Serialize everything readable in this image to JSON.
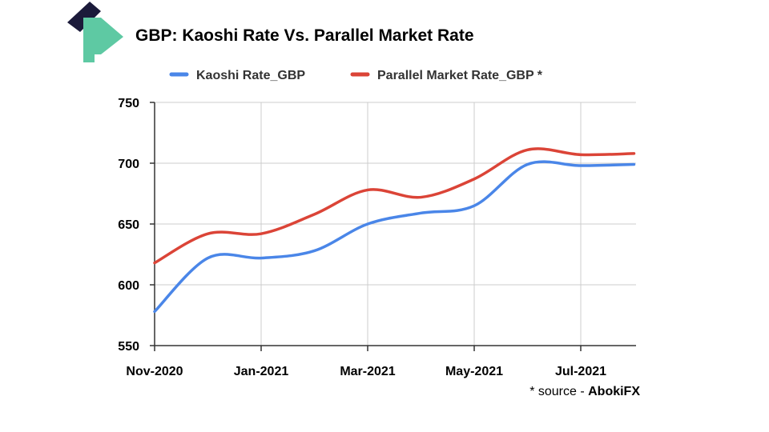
{
  "title": "GBP: Kaoshi Rate Vs. Parallel Market Rate",
  "source": {
    "prefix": "* source - ",
    "name": "AbokiFX"
  },
  "logo": {
    "icon": "kaoshi-logo-icon",
    "colors": {
      "dark": "#1b1a3a",
      "green": "#5ec9a3"
    }
  },
  "chart_data": {
    "type": "line",
    "title": "GBP: Kaoshi Rate Vs. Parallel Market Rate",
    "xlabel": "",
    "ylabel": "",
    "x_tick_labels": [
      "Nov-2020",
      "Jan-2021",
      "Mar-2021",
      "May-2021",
      "Jul-2021"
    ],
    "x_months": [
      "Nov-2020",
      "Dec-2020",
      "Jan-2021",
      "Feb-2021",
      "Mar-2021",
      "Apr-2021",
      "May-2021",
      "Jun-2021",
      "Jul-2021",
      "Aug-2021"
    ],
    "xlim": [
      "Nov-2020",
      "Aug-2021"
    ],
    "ylim": [
      550,
      750
    ],
    "y_ticks": [
      550,
      600,
      650,
      700,
      750
    ],
    "grid": true,
    "legend_position": "top",
    "series": [
      {
        "name": "Kaoshi Rate_GBP",
        "color": "#4a86e8",
        "points": [
          {
            "x": "2020-11-01",
            "y": 578
          },
          {
            "x": "2020-12-01",
            "y": 622
          },
          {
            "x": "2021-01-01",
            "y": 622
          },
          {
            "x": "2021-02-01",
            "y": 628
          },
          {
            "x": "2021-03-01",
            "y": 650
          },
          {
            "x": "2021-04-01",
            "y": 659
          },
          {
            "x": "2021-05-01",
            "y": 665
          },
          {
            "x": "2021-06-01",
            "y": 699
          },
          {
            "x": "2021-07-01",
            "y": 698
          },
          {
            "x": "2021-08-01",
            "y": 699
          }
        ]
      },
      {
        "name": "Parallel Market Rate_GBP *",
        "color": "#db4437",
        "points": [
          {
            "x": "2020-11-01",
            "y": 618
          },
          {
            "x": "2020-12-01",
            "y": 642
          },
          {
            "x": "2021-01-01",
            "y": 642
          },
          {
            "x": "2021-02-01",
            "y": 658
          },
          {
            "x": "2021-03-01",
            "y": 678
          },
          {
            "x": "2021-04-01",
            "y": 672
          },
          {
            "x": "2021-05-01",
            "y": 687
          },
          {
            "x": "2021-06-01",
            "y": 711
          },
          {
            "x": "2021-07-01",
            "y": 707
          },
          {
            "x": "2021-08-01",
            "y": 708
          }
        ]
      }
    ]
  }
}
